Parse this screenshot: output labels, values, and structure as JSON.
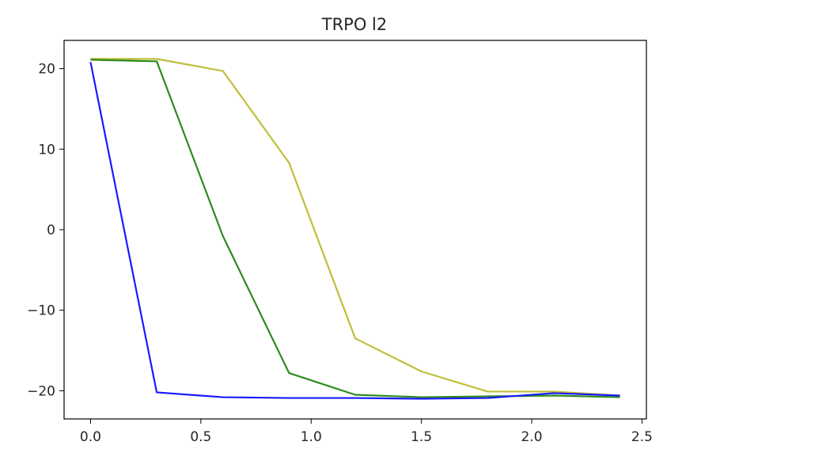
{
  "chart_data": {
    "type": "line",
    "title": "TRPO l2",
    "xlabel": "",
    "ylabel": "",
    "xlim": [
      -0.12,
      2.52
    ],
    "ylim": [
      -23.5,
      23.5
    ],
    "x_ticks": [
      0.0,
      0.5,
      1.0,
      1.5,
      2.0,
      2.5
    ],
    "x_tick_labels": [
      "0.0",
      "0.5",
      "1.0",
      "1.5",
      "2.0",
      "2.5"
    ],
    "y_ticks": [
      20,
      10,
      0,
      -10,
      -20
    ],
    "y_tick_labels": [
      "20",
      "10",
      "0",
      "−10",
      "−20"
    ],
    "grid": false,
    "legend": "none",
    "x": [
      0.0,
      0.3,
      0.6,
      0.9,
      1.2,
      1.5,
      1.8,
      2.1,
      2.4
    ],
    "series": [
      {
        "color": "#bfbf3a",
        "values": [
          21.2,
          21.2,
          19.7,
          8.3,
          -13.5,
          -17.6,
          -20.1,
          -20.1,
          -20.6
        ]
      },
      {
        "color": "#2e8b1f",
        "values": [
          21.1,
          20.9,
          -0.8,
          -17.8,
          -20.5,
          -20.8,
          -20.7,
          -20.6,
          -20.8
        ]
      },
      {
        "color": "#1a1aff",
        "values": [
          20.8,
          -20.2,
          -20.8,
          -20.9,
          -20.9,
          -21.0,
          -20.9,
          -20.3,
          -20.6
        ]
      }
    ]
  }
}
